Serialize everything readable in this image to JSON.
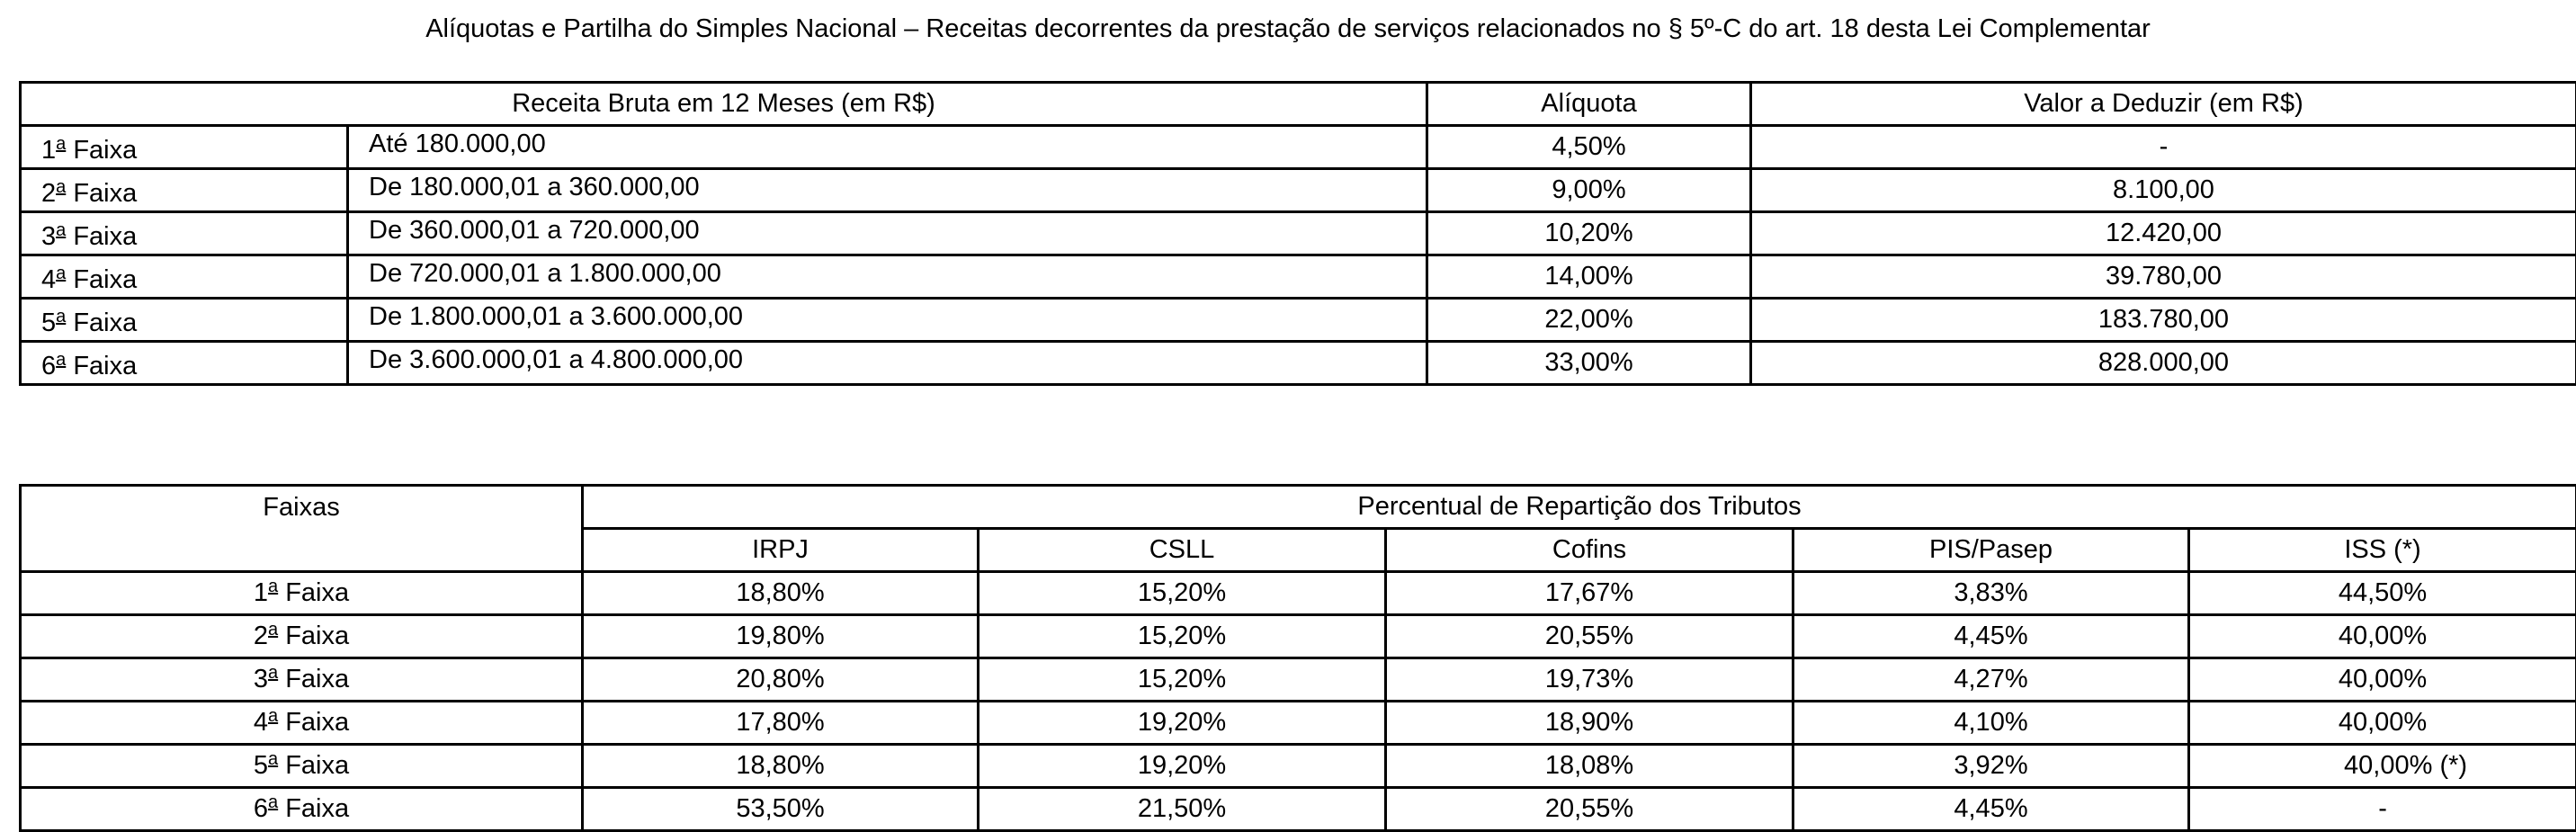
{
  "title": "Alíquotas e Partilha do Simples Nacional – Receitas decorrentes da prestação de serviços relacionados no § 5º-C do art. 18 desta Lei Complementar",
  "aliquotas_table": {
    "headers": {
      "receita": "Receita Bruta em 12 Meses (em R$)",
      "aliquota": "Alíquota",
      "valor_deduzir": "Valor a Deduzir (em R$)"
    },
    "rows": [
      {
        "num": "1",
        "ord": "a",
        "faixa": " Faixa",
        "receita": "Até 180.000,00",
        "aliquota": "4,50%",
        "valor": "-"
      },
      {
        "num": "2",
        "ord": "a",
        "faixa": " Faixa",
        "receita": "De 180.000,01 a 360.000,00",
        "aliquota": "9,00%",
        "valor": "8.100,00"
      },
      {
        "num": "3",
        "ord": "a",
        "faixa": " Faixa",
        "receita": "De 360.000,01 a 720.000,00",
        "aliquota": "10,20%",
        "valor": "12.420,00"
      },
      {
        "num": "4",
        "ord": "a",
        "faixa": " Faixa",
        "receita": "De 720.000,01 a 1.800.000,00",
        "aliquota": "14,00%",
        "valor": "39.780,00"
      },
      {
        "num": "5",
        "ord": "a",
        "faixa": " Faixa",
        "receita": "De 1.800.000,01 a 3.600.000,00",
        "aliquota": "22,00%",
        "valor": "183.780,00"
      },
      {
        "num": "6",
        "ord": "a",
        "faixa": " Faixa",
        "receita": "De 3.600.000,01 a 4.800.000,00",
        "aliquota": "33,00%",
        "valor": "828.000,00"
      }
    ]
  },
  "reparticao_table": {
    "headers": {
      "faixas": "Faixas",
      "percentual": "Percentual de Repartição dos Tributos",
      "irpj": "IRPJ",
      "csll": "CSLL",
      "cofins": "Cofins",
      "pis": "PIS/Pasep",
      "iss": "ISS (*)"
    },
    "rows": [
      {
        "num": "1",
        "ord": "a",
        "faixa": " Faixa",
        "irpj": "18,80%",
        "csll": "15,20%",
        "cofins": "17,67%",
        "pis": "3,83%",
        "iss": "44,50%"
      },
      {
        "num": "2",
        "ord": "a",
        "faixa": " Faixa",
        "irpj": "19,80%",
        "csll": "15,20%",
        "cofins": "20,55%",
        "pis": "4,45%",
        "iss": "40,00%"
      },
      {
        "num": "3",
        "ord": "a",
        "faixa": " Faixa",
        "irpj": "20,80%",
        "csll": "15,20%",
        "cofins": "19,73%",
        "pis": "4,27%",
        "iss": "40,00%"
      },
      {
        "num": "4",
        "ord": "a",
        "faixa": " Faixa",
        "irpj": "17,80%",
        "csll": "19,20%",
        "cofins": "18,90%",
        "pis": "4,10%",
        "iss": "40,00%"
      },
      {
        "num": "5",
        "ord": "a",
        "faixa": " Faixa",
        "irpj": "18,80%",
        "csll": "19,20%",
        "cofins": "18,08%",
        "pis": "3,92%",
        "iss": "40,00% (*)"
      },
      {
        "num": "6",
        "ord": "a",
        "faixa": " Faixa",
        "irpj": "53,50%",
        "csll": "21,50%",
        "cofins": "20,55%",
        "pis": "4,45%",
        "iss": "-"
      }
    ]
  }
}
